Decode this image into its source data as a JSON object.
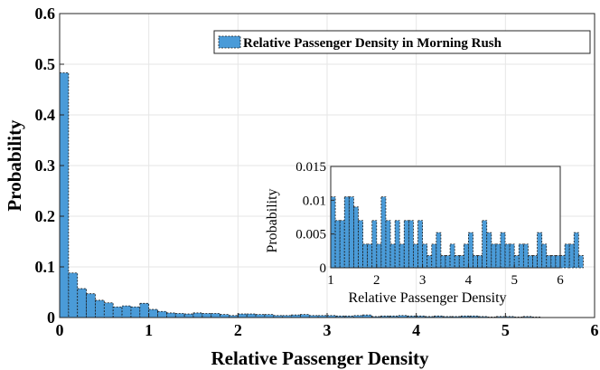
{
  "chart_data": [
    {
      "type": "bar",
      "title": "",
      "xlabel": "Relative Passenger Density",
      "ylabel": "Probability",
      "xlim": [
        0,
        6
      ],
      "ylim": [
        0,
        0.6
      ],
      "xticks": [
        "0",
        "1",
        "2",
        "3",
        "4",
        "5",
        "6"
      ],
      "yticks": [
        "0",
        "0.1",
        "0.2",
        "0.3",
        "0.4",
        "0.5",
        "0.6"
      ],
      "grid": true,
      "legend": {
        "position": "top-right"
      },
      "bin_width": 0.1,
      "series": [
        {
          "name": "Relative Passenger Density in Morning Rush",
          "color": "#4a9bd8",
          "values": [
            0.483,
            0.088,
            0.057,
            0.047,
            0.034,
            0.029,
            0.021,
            0.023,
            0.021,
            0.028,
            0.016,
            0.012,
            0.009,
            0.008,
            0.007,
            0.009,
            0.008,
            0.008,
            0.006,
            0.004,
            0.007,
            0.007,
            0.006,
            0.006,
            0.004,
            0.004,
            0.005,
            0.006,
            0.004,
            0.004,
            0.004,
            0.003,
            0.003,
            0.004,
            0.005,
            0.002,
            0.003,
            0.003,
            0.004,
            0.003,
            0.003,
            0.002,
            0.003,
            0.002,
            0.002,
            0.003,
            0.003,
            0.002,
            0.001,
            0.002,
            0.002,
            0.001,
            0.002,
            0.001
          ]
        }
      ]
    },
    {
      "type": "bar",
      "title": "",
      "xlabel": "Relative Passenger Density",
      "ylabel": "Probability",
      "xlim": [
        1,
        6
      ],
      "ylim": [
        0,
        0.015
      ],
      "xticks": [
        "1",
        "2",
        "3",
        "4",
        "5",
        "6"
      ],
      "yticks": [
        "0",
        "0.005",
        "0.01",
        "0.015"
      ],
      "grid": false,
      "x_start": 1,
      "bin_width": 0.1,
      "series": [
        {
          "color": "#4a9bd8",
          "values": [
            0.0105,
            0.007,
            0.007,
            0.0105,
            0.0105,
            0.009,
            0.007,
            0.0035,
            0.0035,
            0.007,
            0.0035,
            0.0105,
            0.007,
            0.0035,
            0.007,
            0.0035,
            0.007,
            0.007,
            0.0035,
            0.007,
            0.0035,
            0.0018,
            0.0035,
            0.0052,
            0.0018,
            0.0018,
            0.0035,
            0.0018,
            0.0018,
            0.0035,
            0.0052,
            0.0018,
            0.0018,
            0.007,
            0.0052,
            0.0035,
            0.0035,
            0.0052,
            0.0035,
            0.0035,
            0.0018,
            0.0035,
            0.0035,
            0.0018,
            0.0018,
            0.0052,
            0.0035,
            0.0018,
            0.0018,
            0.0018,
            0.0018,
            0.0035,
            0.0035,
            0.0052,
            0.0018
          ]
        }
      ]
    }
  ]
}
